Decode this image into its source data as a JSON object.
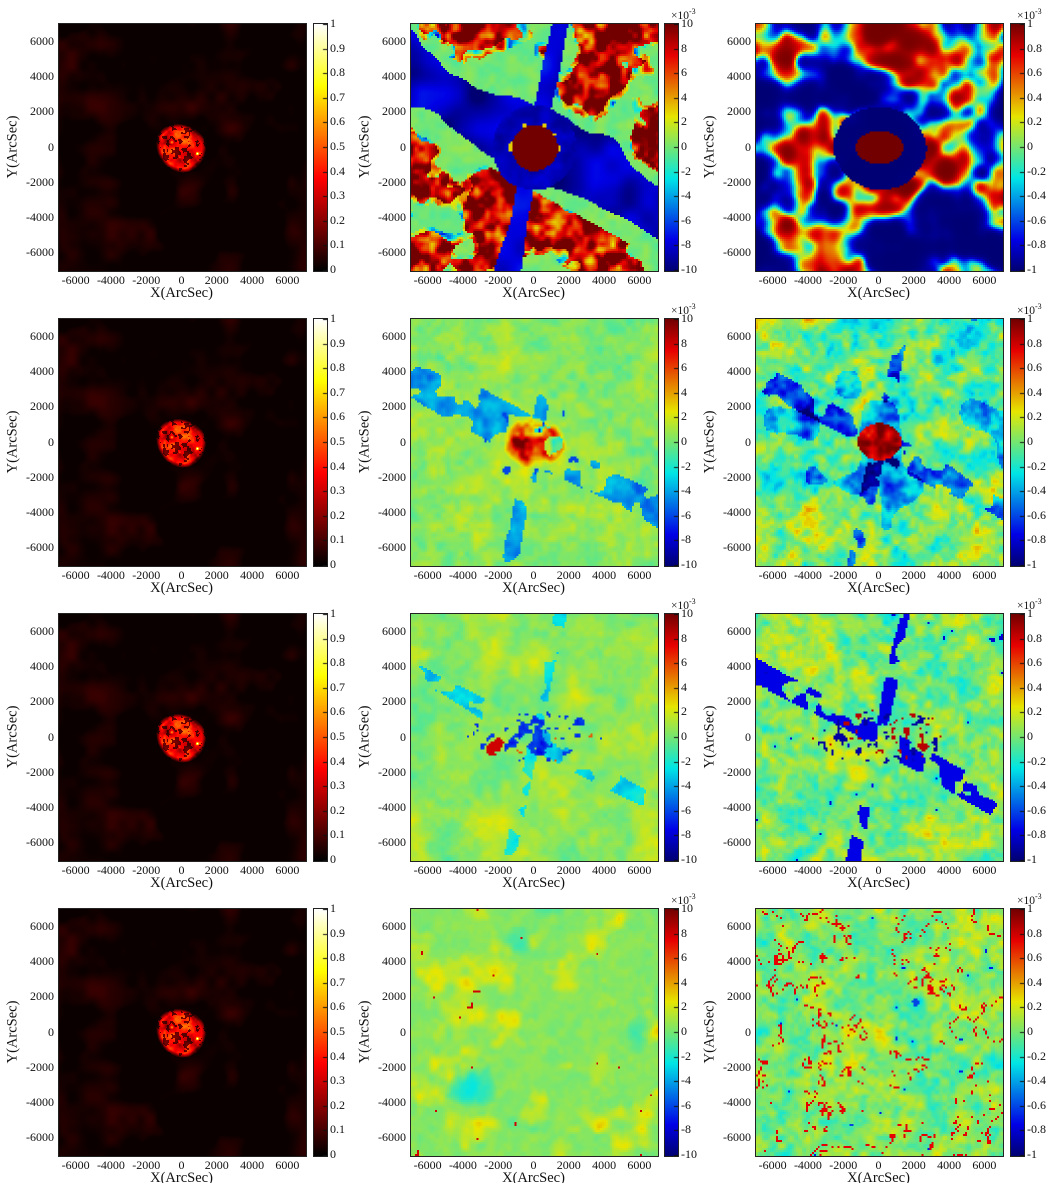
{
  "figure": {
    "x_label": "X(ArcSec)",
    "y_label": "Y(ArcSec)",
    "x_ticks": [
      "-6000",
      "-4000",
      "-2000",
      "0",
      "2000",
      "4000",
      "6000"
    ],
    "y_ticks": [
      "6000",
      "4000",
      "2000",
      "0",
      "-2000",
      "-4000",
      "-6000"
    ],
    "x_range_arcsec": [
      -7000,
      7000
    ],
    "y_range_arcsec": [
      -7000,
      7000
    ],
    "grid_rows": 4,
    "grid_cols": 3,
    "background_color": "#ffffff"
  },
  "colorbars": {
    "intensity": {
      "colormap": "hot",
      "range": [
        0,
        1
      ],
      "ticks": [
        "1",
        "0.9",
        "0.8",
        "0.7",
        "0.6",
        "0.5",
        "0.4",
        "0.3",
        "0.2",
        "0.1",
        "0"
      ],
      "exponent": null
    },
    "jet10": {
      "colormap": "jet",
      "range": [
        -0.01,
        0.01
      ],
      "ticks": [
        "10",
        "8",
        "6",
        "4",
        "2",
        "0",
        "-2",
        "-4",
        "-6",
        "-8",
        "-10"
      ],
      "exponent": {
        "mantissa": "×10",
        "exp": "-3"
      }
    },
    "jet1": {
      "colormap": "jet",
      "range": [
        -0.001,
        0.001
      ],
      "ticks": [
        "1",
        "0.8",
        "0.6",
        "0.4",
        "0.2",
        "0",
        "-0.2",
        "-0.4",
        "-0.6",
        "-0.8",
        "-1"
      ],
      "exponent": {
        "mantissa": "×10",
        "exp": "-3"
      }
    }
  },
  "chart_data": {
    "type": "heatmap",
    "layout": "4x3 grid of solar radio maps; left column repeats the same normalized intensity image, middle column residual maps saturated at ±10×10⁻³, right column residual maps saturated at ±1×10⁻³",
    "panels": [
      {
        "id": "r1-left",
        "row": 1,
        "col": 0,
        "colorbar": "intensity",
        "render": "hot_disk",
        "seed": 5,
        "description": "Normalized intensity: black sky with compact red solar disk (radius ~1500 arcsec) just left of origin, darker lanes inside, bright yellow-white knot at lower-right of disk."
      },
      {
        "id": "r1-mid",
        "row": 1,
        "col": 1,
        "colorbar": "jet10",
        "render": "jet_sat",
        "seed": 11,
        "description": "Saturated difference map: green field, broad dark-blue diagonal lanes through center, saturated dark-red patch clusters in corners, dark-red core inside dark-blue oval at origin."
      },
      {
        "id": "r1-right",
        "row": 1,
        "col": 2,
        "colorbar": "jet1",
        "render": "binary",
        "seed": 21,
        "description": "Fully saturated patchwork of dark-red and dark-blue cells with yellow/cyan fringes; dark-blue oval with dark-red core at origin."
      },
      {
        "id": "r2-left",
        "row": 2,
        "col": 0,
        "colorbar": "intensity",
        "render": "hot_disk",
        "seed": 5,
        "description": "Same normalized intensity image as row 1."
      },
      {
        "id": "r2-mid",
        "row": 2,
        "col": 1,
        "colorbar": "jet10",
        "render": "blob_speckle",
        "seed": 31,
        "description": "Residual: green speckled field, faint dashed blue diagonal lanes, bright red-orange blob over the disk at origin."
      },
      {
        "id": "r2-right",
        "row": 2,
        "col": 2,
        "colorbar": "jet1",
        "render": "noisy_blob",
        "seed": 41,
        "description": "Residual: strong multicolor speckle (green/cyan/yellow/orange), blue patches and dashed lanes, saturated dark-red blob at origin."
      },
      {
        "id": "r3-left",
        "row": 3,
        "col": 0,
        "colorbar": "intensity",
        "render": "hot_disk",
        "seed": 5,
        "description": "Same normalized intensity image as row 1."
      },
      {
        "id": "r3-mid",
        "row": 3,
        "col": 1,
        "colorbar": "jet10",
        "render": "center_band",
        "seed": 51,
        "description": "Residual: nearly uniform green with faint yellow wisps and faint blue lanes; belt of small blue/red speckles across the disk region."
      },
      {
        "id": "r3-right",
        "row": 3,
        "col": 2,
        "colorbar": "jet1",
        "render": "center_band_noisy",
        "seed": 61,
        "description": "Residual: green-cyan speckle with blue dashed diagonal lanes and a dense belt of red/blue speckles across the disk region."
      },
      {
        "id": "r4-left",
        "row": 4,
        "col": 0,
        "colorbar": "intensity",
        "render": "hot_disk",
        "seed": 5,
        "description": "Same normalized intensity image as row 1."
      },
      {
        "id": "r4-mid",
        "row": 4,
        "col": 1,
        "colorbar": "jet10",
        "render": "mottled",
        "seed": 71,
        "description": "Residual: quiet green background with faint yellow mottled network and sparse small red points."
      },
      {
        "id": "r4-right",
        "row": 4,
        "col": 2,
        "colorbar": "jet1",
        "render": "mottled_noisy",
        "seed": 81,
        "description": "Residual: fine green-cyan speckle, soft yellow patch at origin, scattered red filaments and short blue streaks."
      }
    ]
  }
}
